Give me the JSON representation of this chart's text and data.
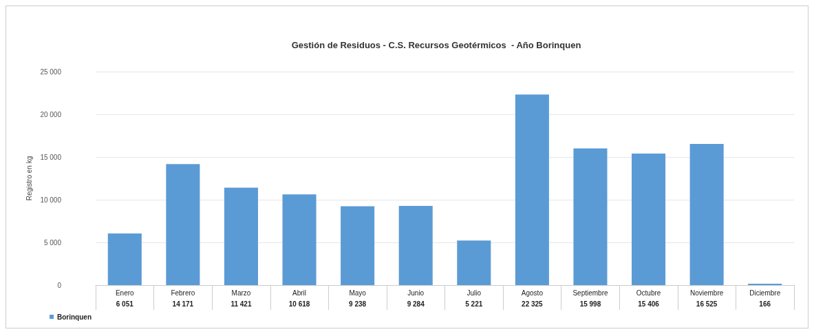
{
  "chart_data": {
    "type": "bar",
    "title": "Gestión de Residuos - C.S. Recursos Geotérmicos  - Año Borinquen",
    "ylabel": "Registro en kg",
    "categories": [
      "Enero",
      "Febrero",
      "Marzo",
      "Abril",
      "Mayo",
      "Junio",
      "Julio",
      "Agosto",
      "Septiembre",
      "Octubre",
      "Noviembre",
      "Diciembre"
    ],
    "series": [
      {
        "name": "Borinquen",
        "color": "#5b9bd5",
        "values": [
          6051,
          14171,
          11421,
          10618,
          9238,
          9284,
          5221,
          22325,
          15998,
          15406,
          16525,
          166
        ],
        "value_labels": [
          "6 051",
          "14 171",
          "11 421",
          "10 618",
          "9 238",
          "9 284",
          "5 221",
          "22 325",
          "15 998",
          "15 406",
          "16 525",
          "166"
        ]
      }
    ],
    "ylim": [
      0,
      25000
    ],
    "yticks": [
      0,
      {
        "value": 5000,
        "label": "5 000"
      },
      {
        "value": 10000,
        "label": "10 000"
      },
      {
        "value": 15000,
        "label": "15 000"
      },
      {
        "value": 20000,
        "label": "20 000"
      },
      {
        "value": 25000,
        "label": "25 000"
      }
    ],
    "grid": "y",
    "legend": "bottom left"
  }
}
